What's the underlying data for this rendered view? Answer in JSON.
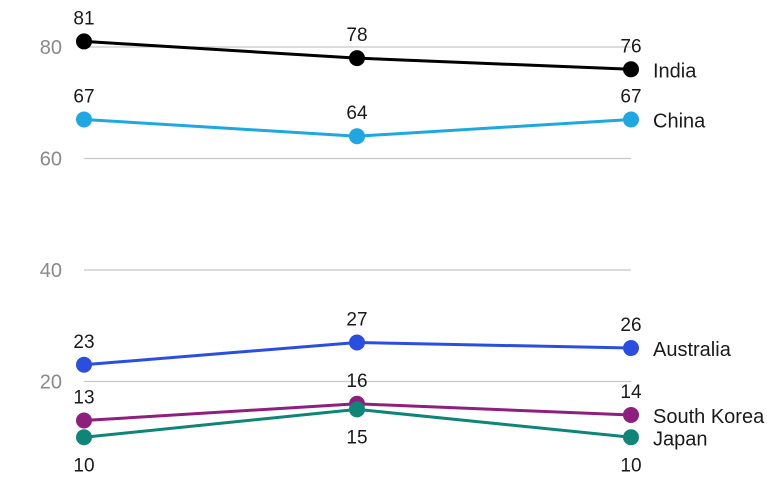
{
  "chart_data": {
    "type": "line",
    "x": [
      "1",
      "2",
      "3"
    ],
    "ylim": [
      0,
      84
    ],
    "yticks": [
      20,
      40,
      60,
      80
    ],
    "ytick_labels": [
      "20",
      "40",
      "60",
      "80"
    ],
    "grid": true,
    "legend": "inline-right",
    "series": [
      {
        "name": "India",
        "values": [
          81,
          78,
          76
        ],
        "labels": [
          "81",
          "78",
          "76"
        ],
        "label_pos": [
          "above",
          "above",
          "above"
        ],
        "color": "#000000"
      },
      {
        "name": "China",
        "values": [
          67,
          64,
          67
        ],
        "labels": [
          "67",
          "64",
          "67"
        ],
        "label_pos": [
          "above",
          "above",
          "above"
        ],
        "color": "#1ea7e1"
      },
      {
        "name": "Australia",
        "values": [
          23,
          27,
          26
        ],
        "labels": [
          "23",
          "27",
          "26"
        ],
        "label_pos": [
          "above",
          "above",
          "above"
        ],
        "color": "#2a4fe0"
      },
      {
        "name": "South Korea",
        "values": [
          13,
          16,
          14
        ],
        "labels": [
          "13",
          "16",
          "14"
        ],
        "label_pos": [
          "above",
          "above",
          "above"
        ],
        "color": "#8e1f7f"
      },
      {
        "name": "Japan",
        "values": [
          10,
          15,
          10
        ],
        "labels": [
          "10",
          "15",
          "10"
        ],
        "label_pos": [
          "below",
          "below",
          "below"
        ],
        "color": "#0e8577"
      }
    ]
  }
}
